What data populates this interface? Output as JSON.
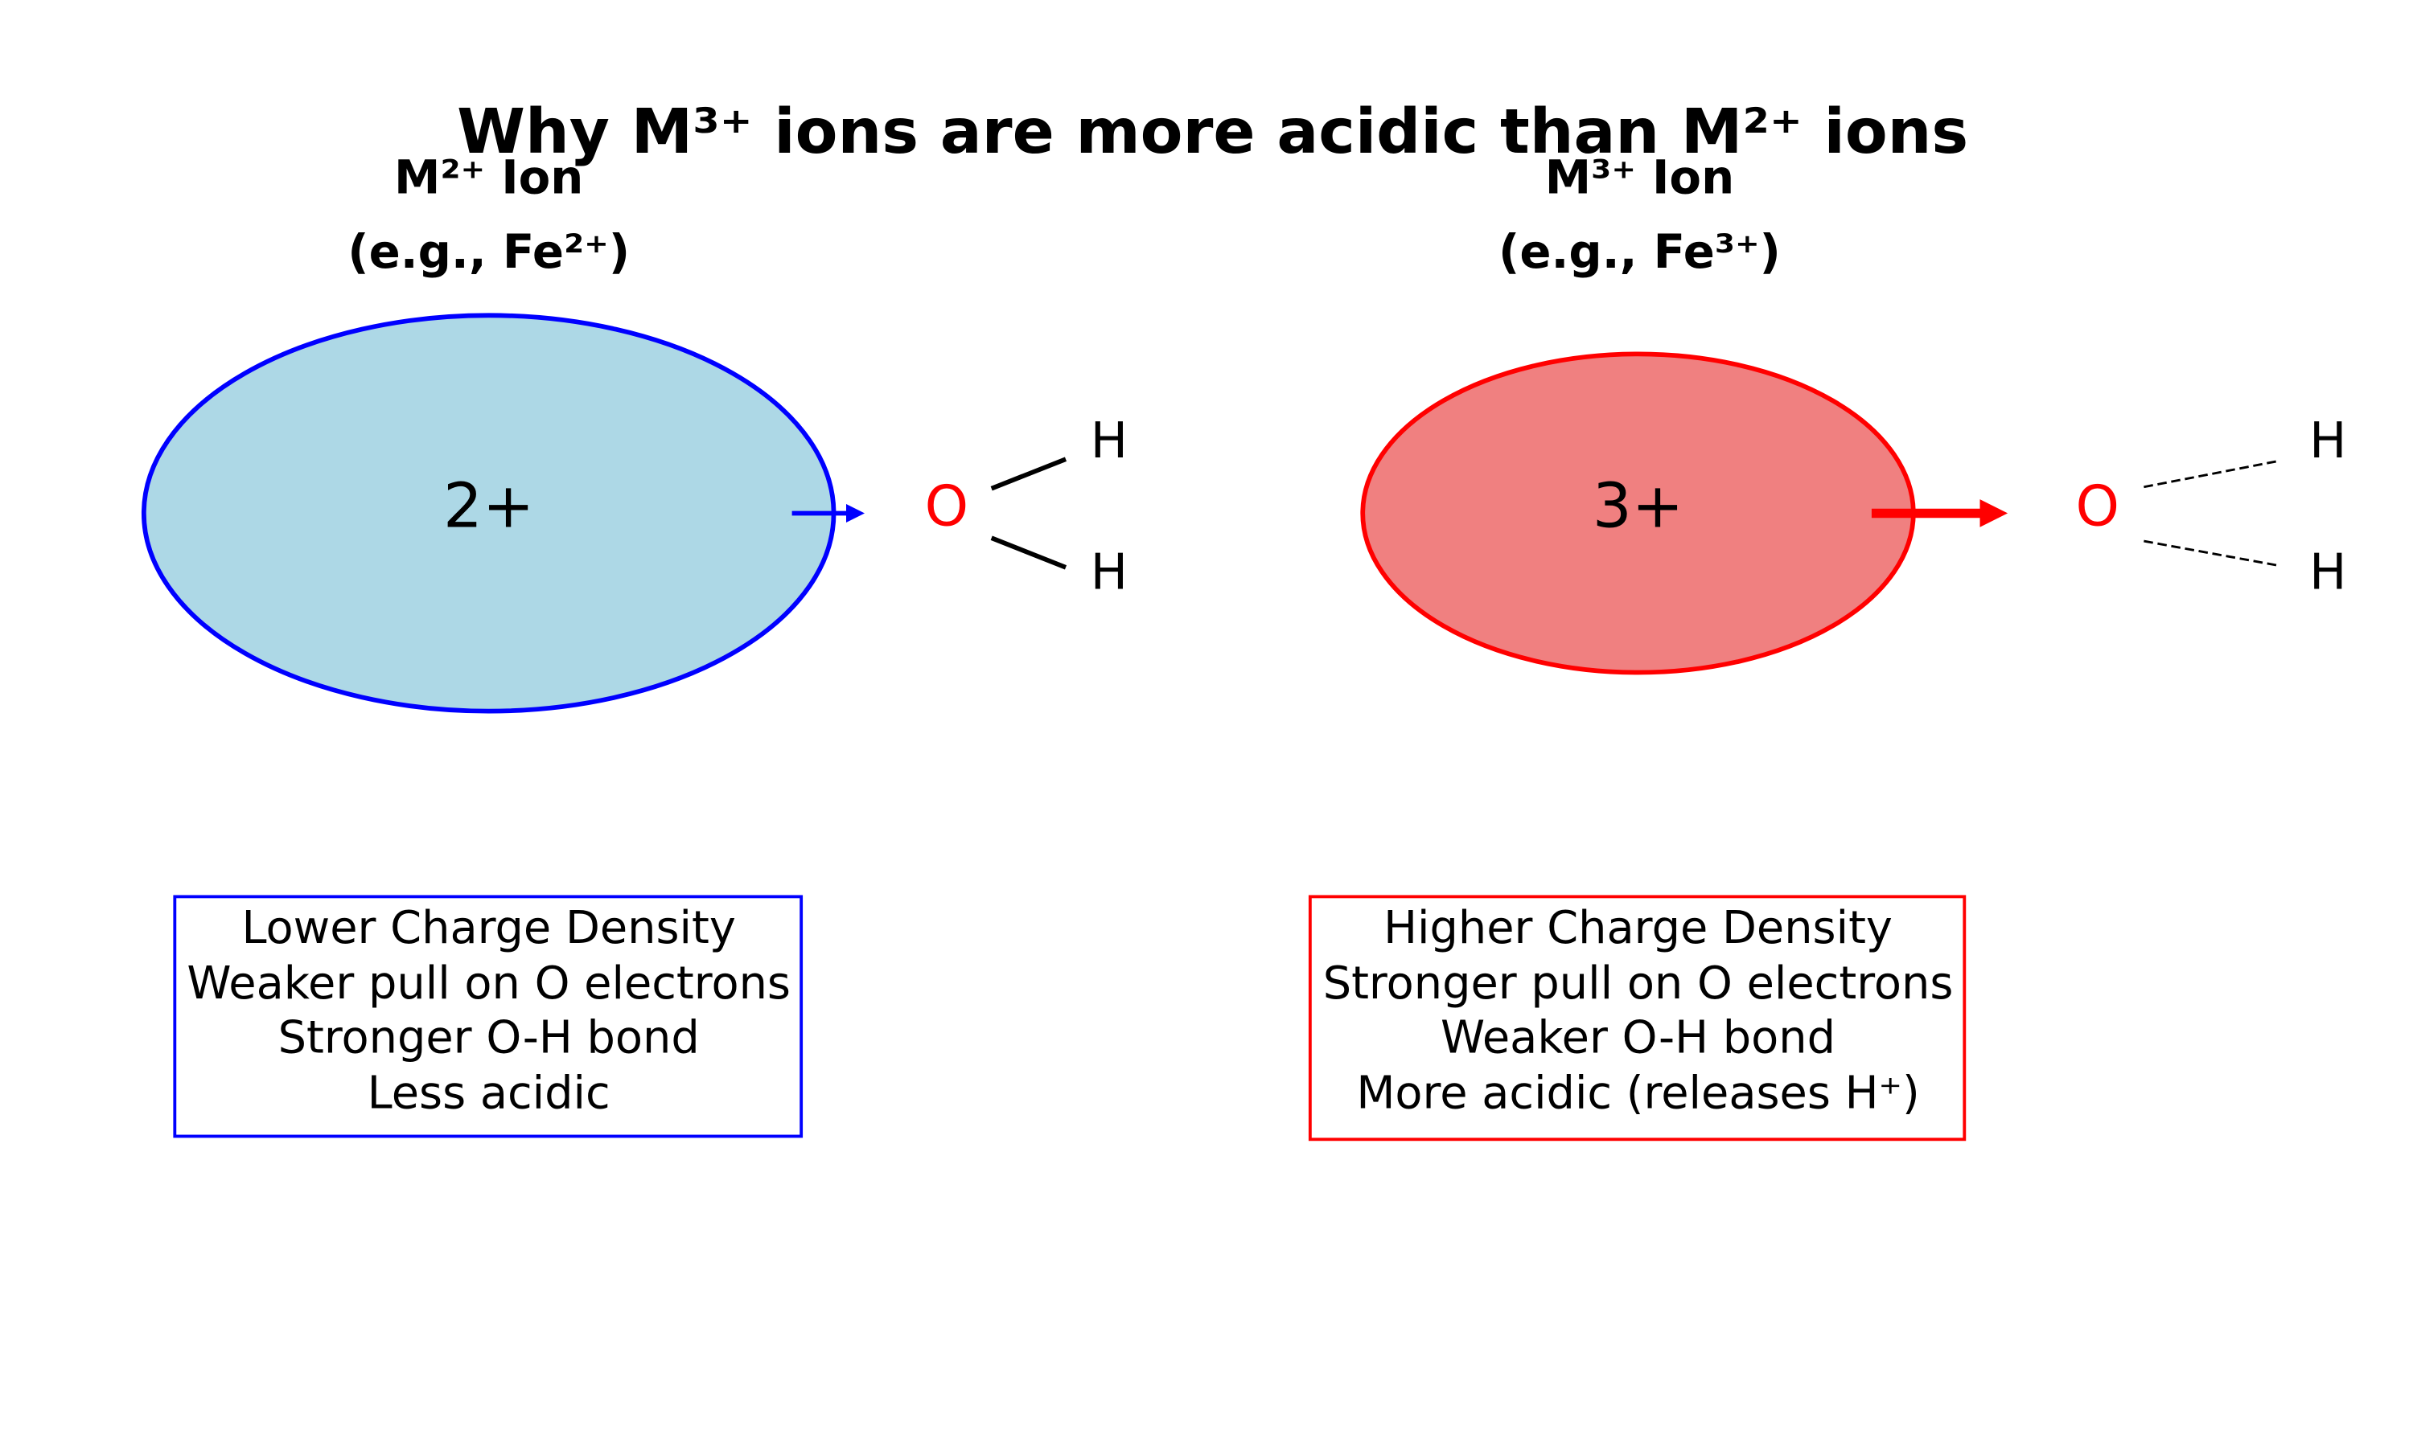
{
  "title": "Why M³⁺ ions are more acidic than M²⁺ ions",
  "panels": [
    {
      "header": "M²⁺ Ion",
      "example": "(e.g., Fe²⁺)",
      "charge": "2+",
      "oxygen": "O",
      "hydrogens": [
        "H",
        "H"
      ],
      "notes": [
        "Lower Charge Density",
        "Weaker pull on O electrons",
        "Stronger O-H bond",
        "Less acidic"
      ]
    },
    {
      "header": "M³⁺ Ion",
      "example": "(e.g., Fe³⁺)",
      "charge": "3+",
      "oxygen": "O",
      "hydrogens": [
        "H",
        "H"
      ],
      "notes": [
        "Higher Charge Density",
        "Stronger pull on O electrons",
        "Weaker O-H bond",
        "More acidic (releases H⁺)"
      ]
    }
  ]
}
